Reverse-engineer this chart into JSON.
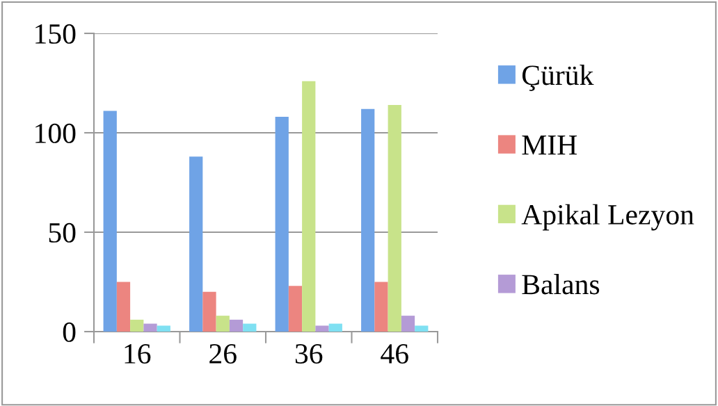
{
  "chart_data": {
    "type": "bar",
    "categories": [
      "16",
      "26",
      "36",
      "46"
    ],
    "series": [
      {
        "name": "Çürük",
        "color": "#6fa3e6",
        "values": [
          111,
          88,
          108,
          112
        ]
      },
      {
        "name": "MIH",
        "color": "#ec8580",
        "values": [
          25,
          20,
          23,
          25
        ]
      },
      {
        "name": "Apikal Lezyon",
        "color": "#c8e38a",
        "values": [
          6,
          8,
          126,
          114
        ]
      },
      {
        "name": "Balans",
        "color": "#b49bd6",
        "values": [
          4,
          6,
          3,
          8
        ]
      },
      {
        "color": "#7fe0f2",
        "values": [
          3,
          4,
          4,
          3
        ]
      }
    ],
    "ylim": [
      0,
      150
    ],
    "yticks": [
      0,
      50,
      100,
      150
    ],
    "grid": "y",
    "legend": "right"
  }
}
